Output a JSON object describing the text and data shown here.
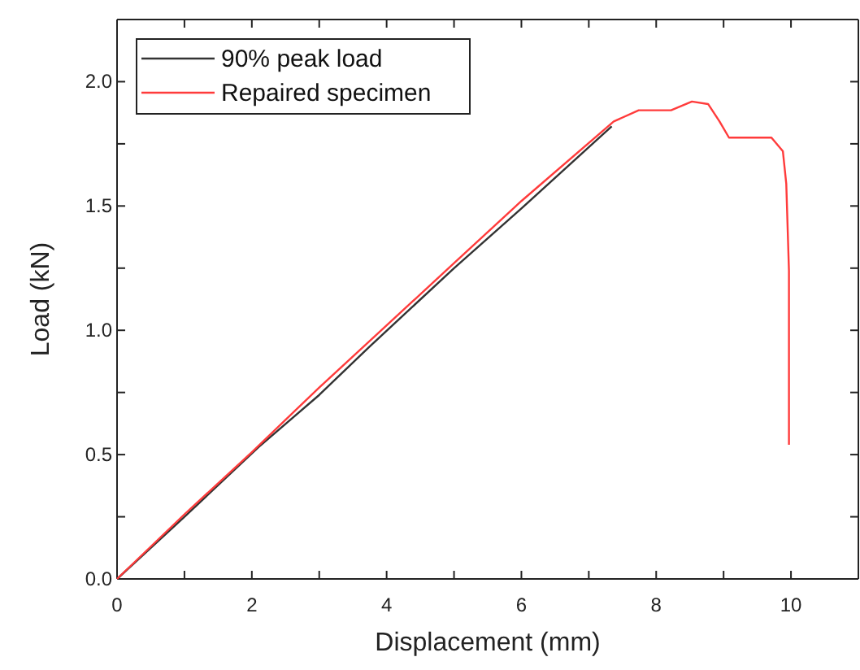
{
  "chart_data": {
    "type": "line",
    "xlabel": "Displacement (mm)",
    "ylabel": "Load (kN)",
    "xlim": [
      0,
      11
    ],
    "ylim": [
      0,
      2.25
    ],
    "xticks": [
      0,
      {
        "value": 1,
        "label": null
      },
      2,
      {
        "value": 3,
        "label": null
      },
      4,
      {
        "value": 5,
        "label": null
      },
      6,
      {
        "value": 7,
        "label": null
      },
      8,
      {
        "value": 9,
        "label": null
      },
      10
    ],
    "yticks": [
      {
        "value": 0,
        "label": "0.0"
      },
      {
        "value": 0.25,
        "label": null
      },
      {
        "value": 0.5,
        "label": "0.5"
      },
      {
        "value": 0.75,
        "label": null
      },
      {
        "value": 1,
        "label": "1.0"
      },
      {
        "value": 1.25,
        "label": null
      },
      {
        "value": 1.5,
        "label": "1.5"
      },
      {
        "value": 1.75,
        "label": null
      },
      {
        "value": 2,
        "label": "2.0"
      }
    ],
    "legend": "top left",
    "grid": false,
    "series": [
      {
        "name": "90% peak load",
        "color": "#333333",
        "x": [
          0,
          1,
          2.1,
          3.0,
          3.73,
          5.0,
          6.0,
          7.34
        ],
        "values": [
          0,
          0.25,
          0.53,
          0.74,
          0.93,
          1.25,
          1.49,
          1.82
        ]
      },
      {
        "name": "Repaired specimen",
        "color": "#ff3b3b",
        "x": [
          0,
          1,
          2.0,
          3.0,
          4.0,
          5.0,
          6.0,
          7.37,
          7.74,
          8.22,
          8.53,
          8.77,
          8.94,
          9.08,
          9.71,
          9.88,
          9.93,
          9.97,
          9.97
        ],
        "values": [
          0,
          0.26,
          0.51,
          0.77,
          1.02,
          1.27,
          1.52,
          1.84,
          1.885,
          1.885,
          1.92,
          1.91,
          1.84,
          1.775,
          1.775,
          1.72,
          1.59,
          1.24,
          0.54
        ]
      }
    ]
  }
}
